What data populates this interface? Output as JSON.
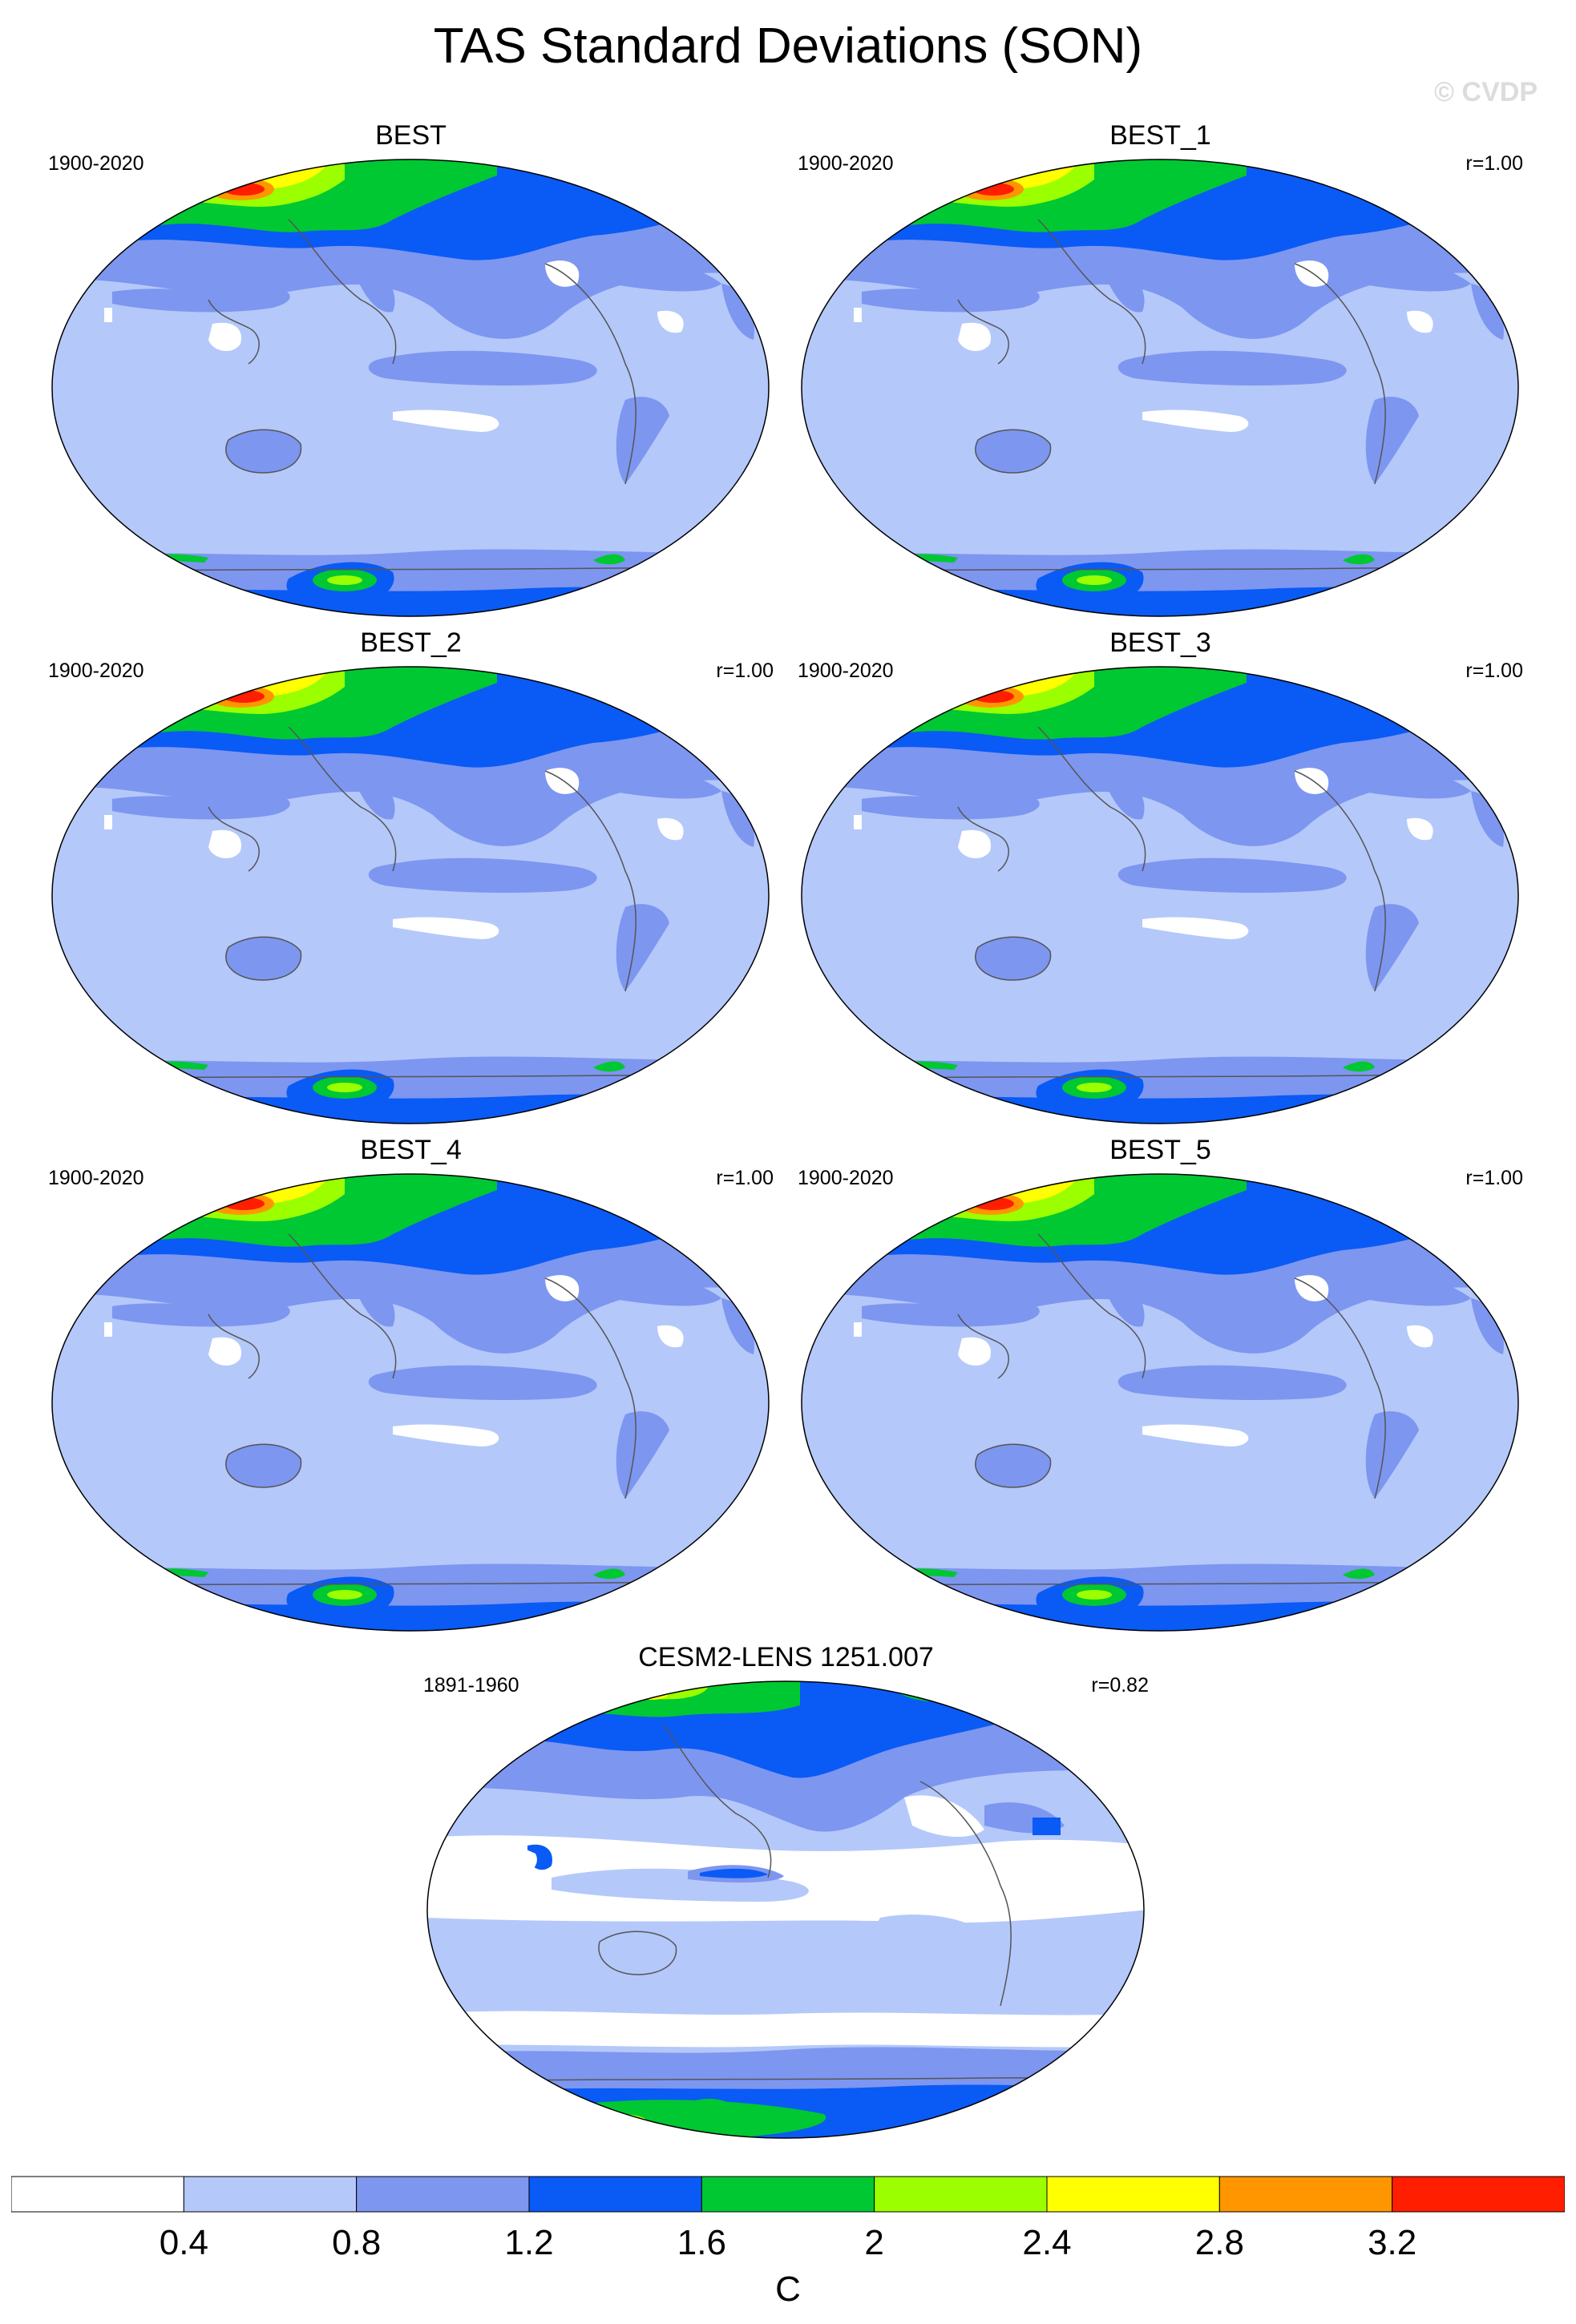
{
  "title": "TAS Standard Deviations (SON)",
  "watermark": "© CVDP",
  "panels": [
    {
      "name": "BEST",
      "years": "1900-2020",
      "corr": ""
    },
    {
      "name": "BEST_1",
      "years": "1900-2020",
      "corr": "r=1.00"
    },
    {
      "name": "BEST_2",
      "years": "1900-2020",
      "corr": "r=1.00"
    },
    {
      "name": "BEST_3",
      "years": "1900-2020",
      "corr": "r=1.00"
    },
    {
      "name": "BEST_4",
      "years": "1900-2020",
      "corr": "r=1.00"
    },
    {
      "name": "BEST_5",
      "years": "1900-2020",
      "corr": "r=1.00"
    },
    {
      "name": "CESM2-LENS 1251.007",
      "years": "1891-1960",
      "corr": "r=0.82"
    }
  ],
  "colorbar": {
    "unit": "C",
    "labels": [
      "0.4",
      "0.8",
      "1.2",
      "1.6",
      "2",
      "2.4",
      "2.8",
      "3.2"
    ],
    "colors": [
      "#ffffff",
      "#b4c8fa",
      "#7d96f0",
      "#0a5af5",
      "#00c832",
      "#9bff00",
      "#ffff00",
      "#ff9600",
      "#ff1e00"
    ]
  }
}
